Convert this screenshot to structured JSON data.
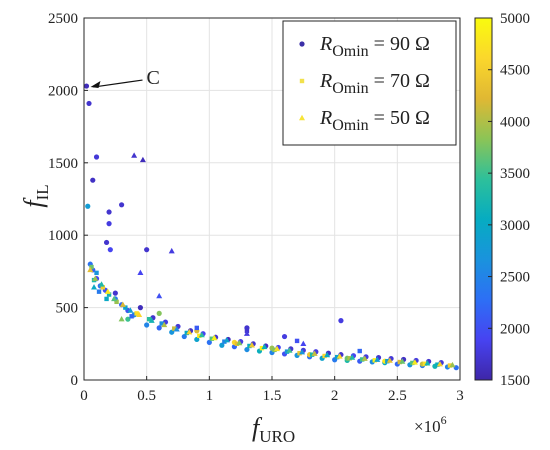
{
  "chart_data": {
    "type": "scatter",
    "title": "",
    "xlabel": {
      "base": "f",
      "sub": "URO"
    },
    "ylabel": {
      "base": "f",
      "sub": "IL"
    },
    "x_multiplier_label": {
      "base": "×10",
      "exp": "6"
    },
    "xlim": [
      0,
      3
    ],
    "ylim": [
      0,
      2500
    ],
    "xticks": [
      "0",
      "0.5",
      "1",
      "1.5",
      "2",
      "2.5",
      "3"
    ],
    "yticks": [
      "0",
      "500",
      "1000",
      "1500",
      "2000",
      "2500"
    ],
    "grid": true,
    "legend_position": "top-right",
    "legend": [
      {
        "symbol": "circle",
        "color": "#3b2fa8",
        "label_prefix": "R",
        "label_sub": "Omin",
        "label_suffix": " = 90 Ω"
      },
      {
        "symbol": "square",
        "color": "#f2e14c",
        "label_prefix": "R",
        "label_sub": "Omin",
        "label_suffix": " = 70 Ω"
      },
      {
        "symbol": "triangle",
        "color": "#f7e438",
        "label_prefix": "R",
        "label_sub": "Omin",
        "label_suffix": " = 50 Ω"
      }
    ],
    "annotation": {
      "text": "C",
      "point": [
        0.02,
        2030
      ]
    },
    "colorbar": {
      "min": 1500,
      "max": 5000,
      "ticks": [
        "1500",
        "2000",
        "2500",
        "3000",
        "3500",
        "4000",
        "4500",
        "5000"
      ],
      "colormap": [
        "#3e26a8",
        "#4743f1",
        "#2d6ff5",
        "#1a93dd",
        "#06acc1",
        "#2ec09a",
        "#8cc456",
        "#e0b833",
        "#fbd72c",
        "#f9fb0e"
      ]
    },
    "series": [
      {
        "marker": "circle",
        "points": [
          [
            0.02,
            2030,
            1600
          ],
          [
            0.04,
            1910,
            1700
          ],
          [
            0.07,
            1380,
            1650
          ],
          [
            0.1,
            1540,
            1750
          ],
          [
            0.03,
            1200,
            2800
          ],
          [
            0.05,
            800,
            2300
          ],
          [
            0.07,
            760,
            2100
          ],
          [
            0.1,
            700,
            1900
          ],
          [
            0.13,
            650,
            2200
          ],
          [
            0.17,
            620,
            2000
          ],
          [
            0.2,
            1160,
            1700
          ],
          [
            0.2,
            1080,
            1800
          ],
          [
            0.18,
            950,
            1700
          ],
          [
            0.21,
            900,
            1900
          ],
          [
            0.25,
            560,
            2400
          ],
          [
            0.3,
            1210,
            1700
          ],
          [
            0.3,
            520,
            2200
          ],
          [
            0.35,
            480,
            2000
          ],
          [
            0.4,
            450,
            2600
          ],
          [
            0.5,
            380,
            2500
          ],
          [
            0.6,
            360,
            2200
          ],
          [
            0.7,
            330,
            2700
          ],
          [
            0.8,
            300,
            2400
          ],
          [
            0.9,
            280,
            2900
          ],
          [
            1.0,
            260,
            2300
          ],
          [
            1.1,
            240,
            2800
          ],
          [
            1.2,
            230,
            2200
          ],
          [
            1.3,
            210,
            2600
          ],
          [
            1.4,
            200,
            3100
          ],
          [
            1.5,
            190,
            2500
          ],
          [
            1.6,
            180,
            2000
          ],
          [
            1.7,
            170,
            2700
          ],
          [
            1.8,
            160,
            2300
          ],
          [
            1.9,
            150,
            2900
          ],
          [
            2.0,
            140,
            2400
          ],
          [
            2.1,
            135,
            3300
          ],
          [
            2.2,
            130,
            2100
          ],
          [
            2.3,
            125,
            2600
          ],
          [
            2.4,
            120,
            3000
          ],
          [
            2.5,
            110,
            2200
          ],
          [
            2.6,
            105,
            2700
          ],
          [
            2.7,
            100,
            2400
          ],
          [
            2.8,
            95,
            3200
          ],
          [
            2.9,
            90,
            2500
          ],
          [
            2.97,
            85,
            2300
          ],
          [
            0.45,
            500,
            1600
          ],
          [
            0.55,
            430,
            1700
          ],
          [
            0.65,
            400,
            1800
          ],
          [
            0.75,
            370,
            1750
          ],
          [
            0.85,
            340,
            1650
          ],
          [
            0.95,
            320,
            1900
          ],
          [
            1.05,
            295,
            1700
          ],
          [
            1.15,
            280,
            1600
          ],
          [
            1.25,
            265,
            1800
          ],
          [
            1.35,
            250,
            1700
          ],
          [
            1.45,
            235,
            1650
          ],
          [
            1.55,
            225,
            1900
          ],
          [
            1.65,
            215,
            1700
          ],
          [
            1.75,
            205,
            1750
          ],
          [
            1.85,
            195,
            1800
          ],
          [
            1.95,
            185,
            1650
          ],
          [
            2.05,
            175,
            1700
          ],
          [
            2.15,
            168,
            1900
          ],
          [
            2.25,
            160,
            1800
          ],
          [
            2.35,
            155,
            1700
          ],
          [
            2.45,
            148,
            1750
          ],
          [
            2.55,
            142,
            1650
          ],
          [
            2.65,
            135,
            1800
          ],
          [
            2.75,
            128,
            1700
          ],
          [
            2.85,
            120,
            1750
          ],
          [
            1.3,
            360,
            1700
          ],
          [
            1.6,
            300,
            1800
          ],
          [
            0.6,
            460,
            3800
          ],
          [
            0.9,
            340,
            4200
          ],
          [
            1.2,
            260,
            4600
          ],
          [
            1.5,
            220,
            3900
          ],
          [
            1.8,
            175,
            4400
          ],
          [
            2.1,
            150,
            3700
          ],
          [
            2.4,
            130,
            4800
          ],
          [
            2.7,
            110,
            4100
          ],
          [
            0.35,
            420,
            3500
          ],
          [
            2.05,
            410,
            1800
          ],
          [
            0.5,
            900,
            1700
          ],
          [
            0.25,
            600,
            1700
          ]
        ]
      },
      {
        "marker": "square",
        "points": [
          [
            0.06,
            780,
            3700
          ],
          [
            0.1,
            740,
            2700
          ],
          [
            0.15,
            640,
            4500
          ],
          [
            0.2,
            590,
            3200
          ],
          [
            0.26,
            540,
            3900
          ],
          [
            0.33,
            500,
            2900
          ],
          [
            0.42,
            460,
            4700
          ],
          [
            0.52,
            420,
            3400
          ],
          [
            0.62,
            390,
            2600
          ],
          [
            0.72,
            355,
            4100
          ],
          [
            0.82,
            325,
            3000
          ],
          [
            0.92,
            305,
            4800
          ],
          [
            1.02,
            285,
            3600
          ],
          [
            1.12,
            265,
            2500
          ],
          [
            1.22,
            250,
            4300
          ],
          [
            1.32,
            235,
            3100
          ],
          [
            1.42,
            220,
            4900
          ],
          [
            1.52,
            208,
            3800
          ],
          [
            1.62,
            196,
            2700
          ],
          [
            1.72,
            185,
            4400
          ],
          [
            1.82,
            175,
            3300
          ],
          [
            1.92,
            166,
            4600
          ],
          [
            2.02,
            158,
            2900
          ],
          [
            2.12,
            150,
            4000
          ],
          [
            2.22,
            142,
            3500
          ],
          [
            2.32,
            136,
            4900
          ],
          [
            2.42,
            130,
            2800
          ],
          [
            2.52,
            124,
            4200
          ],
          [
            2.62,
            118,
            3600
          ],
          [
            2.72,
            112,
            4700
          ],
          [
            2.82,
            106,
            3100
          ],
          [
            2.92,
            100,
            4500
          ],
          [
            0.08,
            690,
            3300
          ],
          [
            0.12,
            610,
            2400
          ],
          [
            0.18,
            560,
            3000
          ],
          [
            0.38,
            440,
            2200
          ],
          [
            0.9,
            360,
            2100
          ],
          [
            1.3,
            340,
            1700
          ],
          [
            1.7,
            270,
            2000
          ],
          [
            2.2,
            200,
            2200
          ]
        ]
      },
      {
        "marker": "triangle",
        "points": [
          [
            0.05,
            760,
            4300
          ],
          [
            0.09,
            700,
            3900
          ],
          [
            0.14,
            660,
            3300
          ],
          [
            0.19,
            610,
            4800
          ],
          [
            0.24,
            560,
            3600
          ],
          [
            0.31,
            520,
            4200
          ],
          [
            0.37,
            480,
            2800
          ],
          [
            0.44,
            450,
            4600
          ],
          [
            0.54,
            410,
            3200
          ],
          [
            0.64,
            380,
            4000
          ],
          [
            0.74,
            350,
            2600
          ],
          [
            0.84,
            330,
            4500
          ],
          [
            0.94,
            310,
            3400
          ],
          [
            1.04,
            290,
            4900
          ],
          [
            1.14,
            275,
            2900
          ],
          [
            1.24,
            255,
            3800
          ],
          [
            1.34,
            240,
            4400
          ],
          [
            1.44,
            228,
            3100
          ],
          [
            1.54,
            215,
            4700
          ],
          [
            1.64,
            203,
            3500
          ],
          [
            1.74,
            192,
            2700
          ],
          [
            1.84,
            182,
            4100
          ],
          [
            1.94,
            172,
            3000
          ],
          [
            2.04,
            163,
            4600
          ],
          [
            2.14,
            155,
            3300
          ],
          [
            2.24,
            147,
            4000
          ],
          [
            2.34,
            140,
            2800
          ],
          [
            2.44,
            134,
            4300
          ],
          [
            2.54,
            127,
            3700
          ],
          [
            2.64,
            121,
            4800
          ],
          [
            2.74,
            115,
            3200
          ],
          [
            2.84,
            109,
            4500
          ],
          [
            2.94,
            103,
            3900
          ],
          [
            0.4,
            1550,
            1700
          ],
          [
            0.47,
            1520,
            1600
          ],
          [
            0.7,
            890,
            1800
          ],
          [
            0.45,
            740,
            1900
          ],
          [
            0.6,
            580,
            2000
          ],
          [
            1.3,
            320,
            1800
          ],
          [
            1.75,
            250,
            1900
          ],
          [
            0.08,
            640,
            3000
          ],
          [
            0.3,
            420,
            3800
          ]
        ]
      }
    ]
  }
}
